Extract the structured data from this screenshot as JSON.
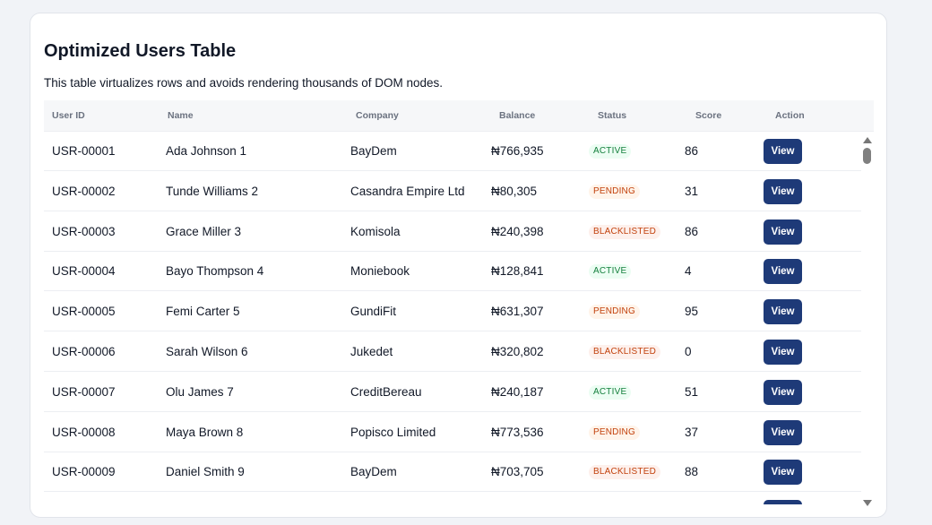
{
  "page": {
    "title": "Optimized Users Table",
    "subtitle": "This table virtualizes rows and avoids rendering thousands of DOM nodes."
  },
  "table": {
    "columns": [
      "User ID",
      "Name",
      "Company",
      "Balance",
      "Status",
      "Score",
      "Action"
    ],
    "rows": [
      {
        "id": "USR-00001",
        "name": "Ada Johnson 1",
        "company": "BayDem",
        "balance": "₦766,935",
        "status": "ACTIVE",
        "score": "86",
        "action": "View"
      },
      {
        "id": "USR-00002",
        "name": "Tunde Williams 2",
        "company": "Casandra Empire Ltd",
        "balance": "₦80,305",
        "status": "PENDING",
        "score": "31",
        "action": "View"
      },
      {
        "id": "USR-00003",
        "name": "Grace Miller 3",
        "company": "Komisola",
        "balance": "₦240,398",
        "status": "BLACKLISTED",
        "score": "86",
        "action": "View"
      },
      {
        "id": "USR-00004",
        "name": "Bayo Thompson 4",
        "company": "Moniebook",
        "balance": "₦128,841",
        "status": "ACTIVE",
        "score": "4",
        "action": "View"
      },
      {
        "id": "USR-00005",
        "name": "Femi Carter 5",
        "company": "GundiFit",
        "balance": "₦631,307",
        "status": "PENDING",
        "score": "95",
        "action": "View"
      },
      {
        "id": "USR-00006",
        "name": "Sarah Wilson 6",
        "company": "Jukedet",
        "balance": "₦320,802",
        "status": "BLACKLISTED",
        "score": "0",
        "action": "View"
      },
      {
        "id": "USR-00007",
        "name": "Olu James 7",
        "company": "CreditBereau",
        "balance": "₦240,187",
        "status": "ACTIVE",
        "score": "51",
        "action": "View"
      },
      {
        "id": "USR-00008",
        "name": "Maya Brown 8",
        "company": "Popisco Limited",
        "balance": "₦773,536",
        "status": "PENDING",
        "score": "37",
        "action": "View"
      },
      {
        "id": "USR-00009",
        "name": "Daniel Smith 9",
        "company": "BayDem",
        "balance": "₦703,705",
        "status": "BLACKLISTED",
        "score": "88",
        "action": "View"
      },
      {
        "id": "",
        "name": "",
        "company": "",
        "balance": "",
        "status": "",
        "score": "",
        "action": ""
      }
    ]
  },
  "colors": {
    "accent": "#1e3a78",
    "active": "#15803d",
    "pending": "#c2410c",
    "blacklisted": "#c2410c"
  }
}
